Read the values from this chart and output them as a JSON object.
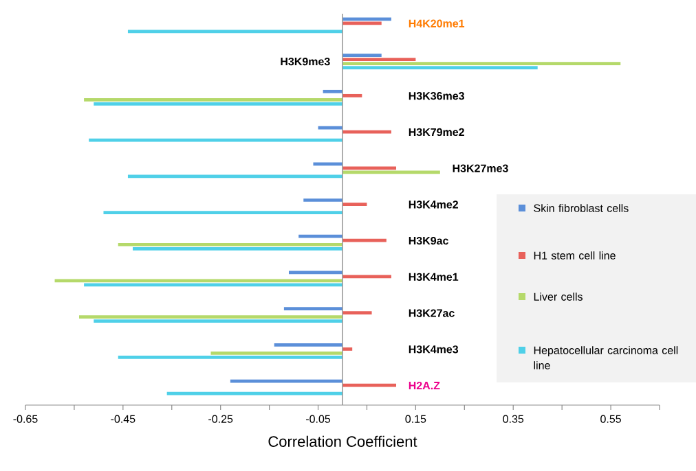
{
  "chart_data": {
    "type": "bar",
    "orientation": "horizontal",
    "xlabel": "Correlation Coefficient",
    "categories": [
      "H4K20me1",
      "H3K9me3",
      "H3K36me3",
      "H3K79me2",
      "H3K27me3",
      "H3K4me2",
      "H3K9ac",
      "H3K4me1",
      "H3K27ac",
      "H3K4me3",
      "H2A.Z"
    ],
    "series": [
      {
        "name": "Skin fibroblast cells",
        "color": "#5b8fd9",
        "values": [
          0.1,
          0.08,
          -0.04,
          -0.05,
          -0.06,
          -0.08,
          -0.09,
          -0.11,
          -0.12,
          -0.14,
          -0.23
        ]
      },
      {
        "name": "H1 stem cell line",
        "color": "#e8615a",
        "values": [
          0.08,
          0.15,
          0.04,
          0.1,
          0.11,
          0.05,
          0.09,
          0.1,
          0.06,
          0.02,
          0.11
        ]
      },
      {
        "name": "Liver cells",
        "color": "#b5d96a",
        "values": [
          null,
          0.57,
          -0.53,
          null,
          0.2,
          null,
          -0.46,
          -0.59,
          -0.54,
          -0.27,
          null
        ]
      },
      {
        "name": "Hepatocellular carcinoma cell line",
        "color": "#4fd0e8",
        "values": [
          -0.44,
          0.4,
          -0.51,
          -0.52,
          -0.44,
          -0.49,
          -0.43,
          -0.53,
          -0.51,
          -0.46,
          -0.36
        ]
      }
    ],
    "xlim": [
      -0.65,
      0.65
    ],
    "xticks": [
      -0.65,
      {
        "value": -0.55,
        "label": null
      },
      -0.45,
      {
        "value": -0.35,
        "label": null
      },
      -0.25,
      {
        "value": -0.15,
        "label": null
      },
      -0.05,
      {
        "value": 0.05,
        "label": null
      },
      0.15,
      {
        "value": 0.25,
        "label": null
      },
      0.35,
      {
        "value": 0.45,
        "label": null
      },
      0.55,
      {
        "value": 0.65,
        "label": null
      }
    ],
    "ref_lines": [
      {
        "axis": "x",
        "value": 0,
        "color": "#8c8c8c"
      }
    ],
    "legend": "right"
  }
}
